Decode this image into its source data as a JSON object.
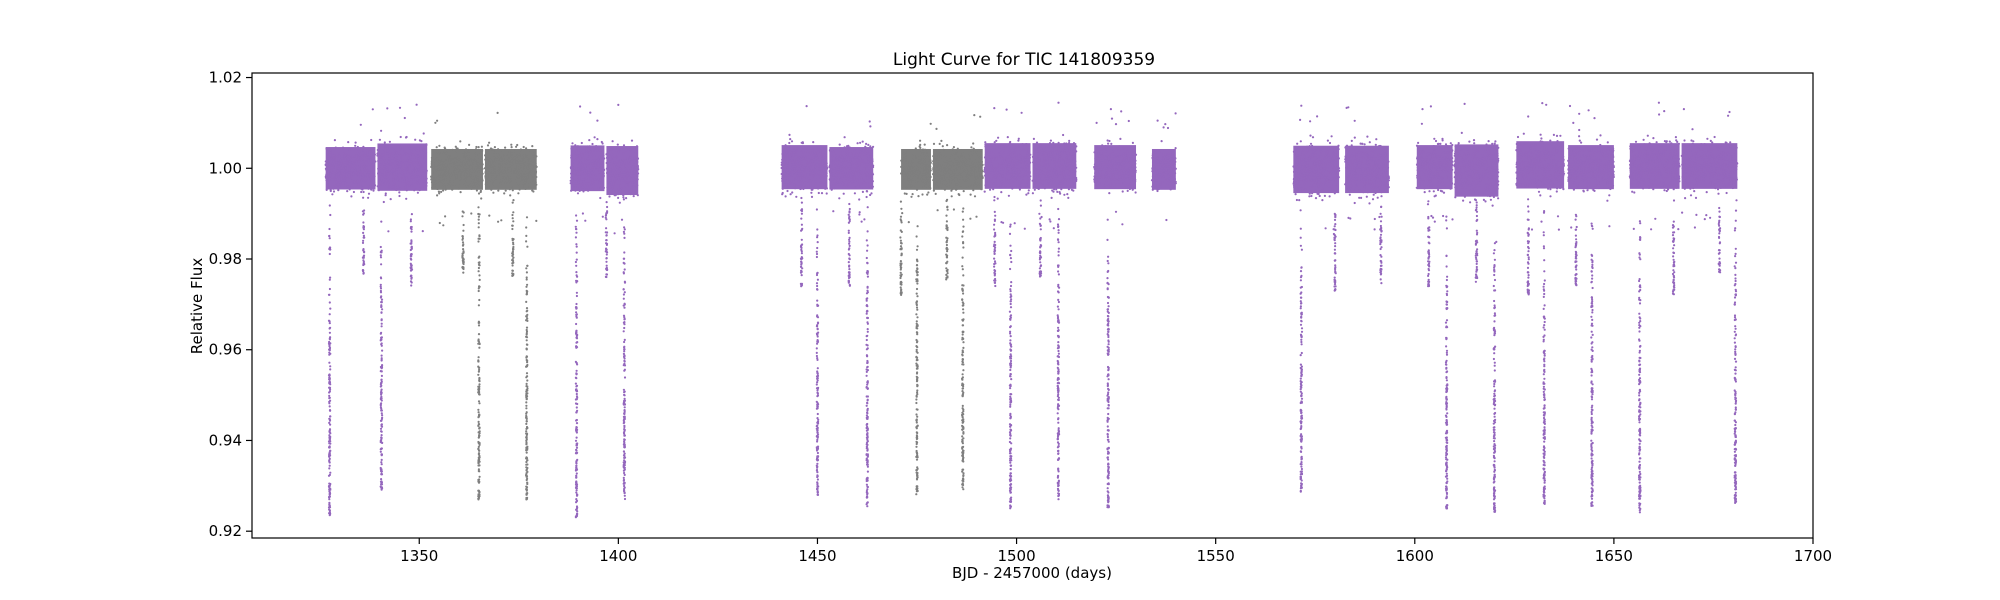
{
  "chart_data": {
    "type": "scatter",
    "title": "Light Curve for TIC 141809359",
    "xlabel": "BJD - 2457000 (days)",
    "ylabel": "Relative Flux",
    "xlim": [
      1308,
      1700
    ],
    "ylim": [
      0.9185,
      1.021
    ],
    "xticks": [
      1350,
      1400,
      1450,
      1500,
      1550,
      1600,
      1650,
      1700
    ],
    "yticks": [
      0.92,
      0.94,
      0.96,
      0.98,
      1.0,
      1.02
    ],
    "ytick_labels": [
      "0.92",
      "0.94",
      "0.96",
      "0.98",
      "1.00",
      "1.02"
    ],
    "grid": false,
    "legend": "none",
    "colors": {
      "purple": "#9467bd",
      "gray": "#7f7f7f"
    },
    "series": [
      {
        "color": "purple",
        "segments": [
          {
            "x": [
              1326.5,
              1339.0
            ],
            "y": [
              0.9935,
              1.0065
            ]
          },
          {
            "x": [
              1339.5,
              1352.0
            ],
            "y": [
              0.993,
              1.0075
            ]
          },
          {
            "x": [
              1388.0,
              1396.5
            ],
            "y": [
              0.993,
              1.007
            ]
          },
          {
            "x": [
              1397.0,
              1405.0
            ],
            "y": [
              0.992,
              1.007
            ]
          },
          {
            "x": [
              1441.0,
              1452.5
            ],
            "y": [
              0.9935,
              1.007
            ]
          },
          {
            "x": [
              1453.0,
              1464.0
            ],
            "y": [
              0.9935,
              1.0065
            ]
          },
          {
            "x": [
              1492.0,
              1503.5
            ],
            "y": [
              0.9935,
              1.0075
            ]
          },
          {
            "x": [
              1504.0,
              1515.0
            ],
            "y": [
              0.9935,
              1.0075
            ]
          },
          {
            "x": [
              1519.5,
              1530.0
            ],
            "y": [
              0.9935,
              1.007
            ]
          },
          {
            "x": [
              1534.0,
              1540.0
            ],
            "y": [
              0.9935,
              1.006
            ]
          },
          {
            "x": [
              1569.5,
              1581.0
            ],
            "y": [
              0.9925,
              1.007
            ]
          },
          {
            "x": [
              1582.5,
              1593.5
            ],
            "y": [
              0.9925,
              1.007
            ]
          },
          {
            "x": [
              1600.5,
              1609.5
            ],
            "y": [
              0.9935,
              1.007
            ]
          },
          {
            "x": [
              1610.0,
              1621.0
            ],
            "y": [
              0.9915,
              1.0075
            ]
          },
          {
            "x": [
              1625.5,
              1637.5
            ],
            "y": [
              0.9935,
              1.008
            ]
          },
          {
            "x": [
              1638.5,
              1650.0
            ],
            "y": [
              0.9935,
              1.007
            ]
          },
          {
            "x": [
              1654.0,
              1666.5
            ],
            "y": [
              0.9935,
              1.0075
            ]
          },
          {
            "x": [
              1667.0,
              1681.0
            ],
            "y": [
              0.9935,
              1.0075
            ]
          }
        ],
        "dips": [
          {
            "x": 1327.5,
            "min": 0.923
          },
          {
            "x": 1336.0,
            "min": 0.976
          },
          {
            "x": 1340.5,
            "min": 0.929
          },
          {
            "x": 1348.0,
            "min": 0.974
          },
          {
            "x": 1389.5,
            "min": 0.923
          },
          {
            "x": 1397.0,
            "min": 0.976
          },
          {
            "x": 1401.5,
            "min": 0.927
          },
          {
            "x": 1446.0,
            "min": 0.974
          },
          {
            "x": 1450.0,
            "min": 0.928
          },
          {
            "x": 1458.0,
            "min": 0.974
          },
          {
            "x": 1462.5,
            "min": 0.925
          },
          {
            "x": 1494.5,
            "min": 0.974
          },
          {
            "x": 1498.5,
            "min": 0.925
          },
          {
            "x": 1506.0,
            "min": 0.976
          },
          {
            "x": 1510.5,
            "min": 0.927
          },
          {
            "x": 1523.0,
            "min": 0.925
          },
          {
            "x": 1571.5,
            "min": 0.928
          },
          {
            "x": 1580.0,
            "min": 0.973
          },
          {
            "x": 1591.5,
            "min": 0.974
          },
          {
            "x": 1603.5,
            "min": 0.974
          },
          {
            "x": 1608.0,
            "min": 0.925
          },
          {
            "x": 1615.5,
            "min": 0.974
          },
          {
            "x": 1620.0,
            "min": 0.924
          },
          {
            "x": 1628.5,
            "min": 0.972
          },
          {
            "x": 1632.5,
            "min": 0.926
          },
          {
            "x": 1640.5,
            "min": 0.974
          },
          {
            "x": 1644.5,
            "min": 0.925
          },
          {
            "x": 1656.5,
            "min": 0.924
          },
          {
            "x": 1665.0,
            "min": 0.972
          },
          {
            "x": 1676.5,
            "min": 0.977
          },
          {
            "x": 1680.5,
            "min": 0.926
          }
        ]
      },
      {
        "color": "gray",
        "segments": [
          {
            "x": [
              1353.0,
              1366.0
            ],
            "y": [
              0.9935,
              1.006
            ]
          },
          {
            "x": [
              1366.5,
              1379.5
            ],
            "y": [
              0.9935,
              1.006
            ]
          },
          {
            "x": [
              1471.0,
              1478.5
            ],
            "y": [
              0.9935,
              1.006
            ]
          },
          {
            "x": [
              1479.0,
              1491.5
            ],
            "y": [
              0.9935,
              1.006
            ]
          }
        ],
        "dips": [
          {
            "x": 1361.0,
            "min": 0.977
          },
          {
            "x": 1365.0,
            "min": 0.927
          },
          {
            "x": 1373.5,
            "min": 0.976
          },
          {
            "x": 1377.0,
            "min": 0.927
          },
          {
            "x": 1471.0,
            "min": 0.972
          },
          {
            "x": 1475.0,
            "min": 0.928
          },
          {
            "x": 1482.5,
            "min": 0.975
          },
          {
            "x": 1486.5,
            "min": 0.929
          }
        ]
      }
    ]
  }
}
